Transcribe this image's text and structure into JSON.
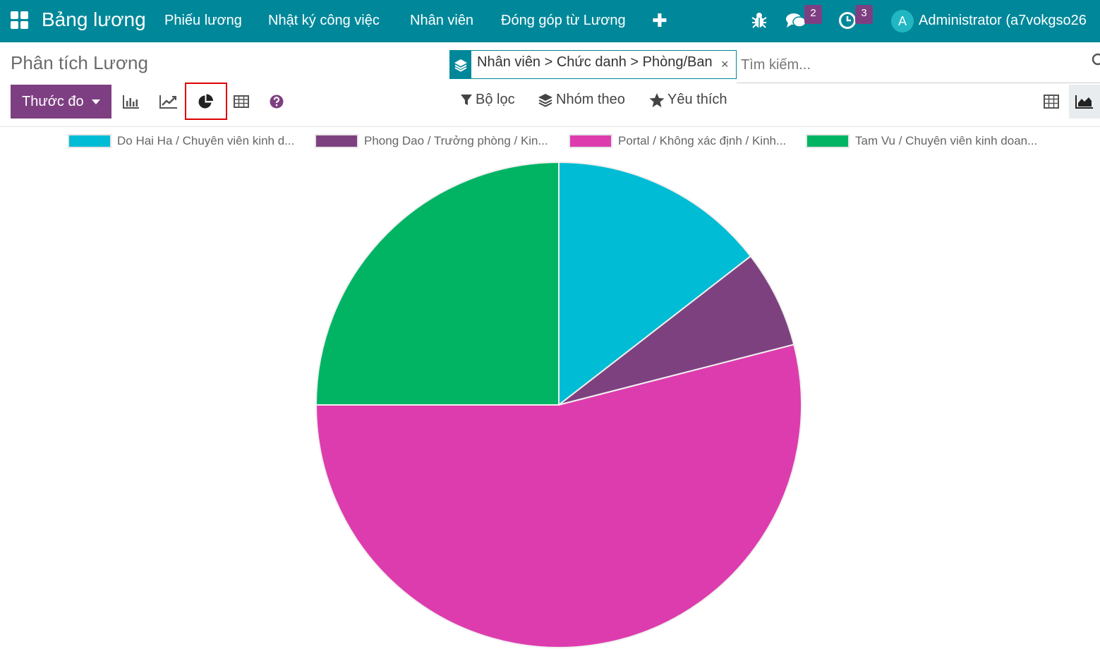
{
  "navbar": {
    "brand": "Bảng lương",
    "menu": [
      "Phiếu lương",
      "Nhật ký công việc",
      "Nhân viên",
      "Đóng góp từ Lương"
    ],
    "messages_badge": "2",
    "activities_badge": "3",
    "avatar_initial": "A",
    "user_name": "Administrator (a7vokgso26"
  },
  "control": {
    "title": "Phân tích Lương",
    "facet_text": "Nhân viên > Chức danh > Phòng/Ban",
    "facet_close": "×",
    "search_placeholder": "Tìm kiếm...",
    "measure_label": "Thước đo",
    "filter_label": "Bộ lọc",
    "groupby_label": "Nhóm theo",
    "favorites_label": "Yêu thích",
    "active_chart": "pie"
  },
  "colors": {
    "navbar": "#00889a",
    "primary": "#7e3f82",
    "active_outline": "#e00000"
  },
  "chart_data": {
    "type": "pie",
    "labels": [
      "Do Hai Ha / Chuyên viên kinh d...",
      "Phong Dao / Trưởng phòng / Kin...",
      "Portal / Không xác định / Kinh...",
      "Tam Vu / Chuyên viên kinh doan..."
    ],
    "values": [
      14.5,
      6.5,
      54,
      25
    ],
    "colors": [
      "#00bcd4",
      "#7e4180",
      "#dd3cae",
      "#00b464"
    ],
    "legend_position": "top"
  }
}
